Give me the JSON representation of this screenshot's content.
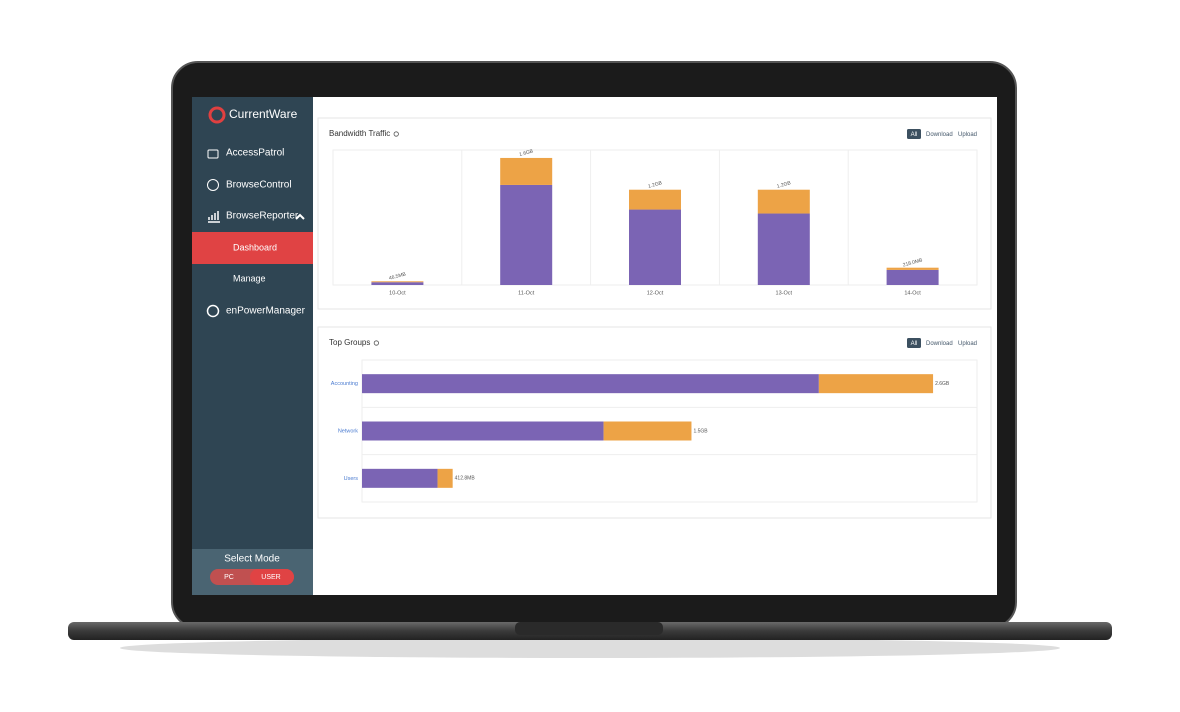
{
  "sidebar": {
    "logo": "CurrentWare",
    "items": [
      "AccessPatrol",
      "BrowseControl",
      "BrowseReporter",
      "Dashboard",
      "Manage",
      "enPowerManager"
    ],
    "mode": {
      "title": "Select Mode",
      "options": [
        "PC",
        "USER"
      ]
    }
  },
  "chart_data": [
    {
      "type": "bar",
      "orientation": "vertical",
      "stacked": true,
      "title": "Bandwidth Traffic",
      "buttons": [
        "All",
        "Download",
        "Upload"
      ],
      "categories": [
        "10-Oct",
        "11-Oct",
        "12-Oct",
        "13-Oct",
        "14-Oct"
      ],
      "series": [
        {
          "color": "#7b64b4",
          "values": [
            0.035,
            1.26,
            0.95,
            0.9,
            0.19
          ]
        },
        {
          "color": "#eda346",
          "values": [
            0.0115,
            0.34,
            0.25,
            0.3,
            0.028
          ]
        }
      ],
      "totals": [
        0.0465,
        1.6,
        1.2,
        1.2,
        0.218
      ],
      "total_labels": [
        "46.5MB",
        "1.6GB",
        "1.2GB",
        "1.2GB",
        "218.0MB"
      ],
      "ylim": [
        0,
        1.7
      ]
    },
    {
      "type": "bar",
      "orientation": "horizontal",
      "stacked": true,
      "title": "Top Groups",
      "buttons": [
        "All",
        "Download",
        "Upload"
      ],
      "categories": [
        "Accounting",
        "Network",
        "Users"
      ],
      "series": [
        {
          "color": "#7b64b4",
          "values": [
            2.08,
            1.1,
            0.344
          ]
        },
        {
          "color": "#eda346",
          "values": [
            0.52,
            0.4,
            0.0688
          ]
        }
      ],
      "totals": [
        2.6,
        1.5,
        0.4128
      ],
      "total_labels": [
        "2.6GB",
        "1.5GB",
        "412.8MB"
      ],
      "xlim": [
        0,
        2.8
      ]
    }
  ]
}
